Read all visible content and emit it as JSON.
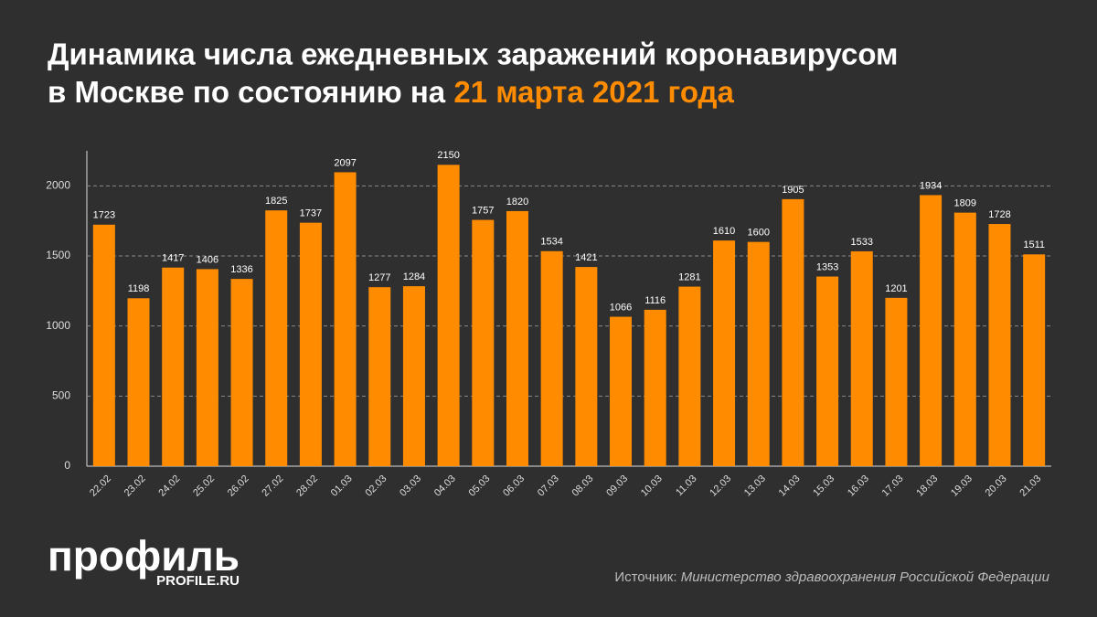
{
  "chart_data": {
    "type": "bar",
    "title": [
      "Динамика числа ежедневных заражений коронавирусом",
      "в Москве по состоянию на"
    ],
    "title_highlight": "21 марта 2021 года",
    "categories": [
      "22.02",
      "23.02",
      "24.02",
      "25.02",
      "26.02",
      "27.02",
      "28.02",
      "01.03",
      "02.03",
      "03.03",
      "04.03",
      "05.03",
      "06.03",
      "07.03",
      "08.03",
      "09.03",
      "10.03",
      "11.03",
      "12.03",
      "13.03",
      "14.03",
      "15.03",
      "16.03",
      "17.03",
      "18.03",
      "19.03",
      "20.03",
      "21.03"
    ],
    "values": [
      1723,
      1198,
      1417,
      1406,
      1336,
      1825,
      1737,
      2097,
      1277,
      1284,
      2150,
      1757,
      1820,
      1534,
      1421,
      1066,
      1116,
      1281,
      1610,
      1600,
      1905,
      1353,
      1533,
      1201,
      1934,
      1809,
      1728,
      1511
    ],
    "color": "#ff8c00",
    "highlight_color": "#ff8c00",
    "ylim": [
      0,
      2250
    ],
    "yticks": [
      0,
      500,
      1000,
      1500,
      2000
    ],
    "grid": true,
    "source_label": "Источник:",
    "source": "Министерство здравоохранения Российской Федерации",
    "logo": "профиль",
    "logo_site": "PROFILE.RU"
  }
}
